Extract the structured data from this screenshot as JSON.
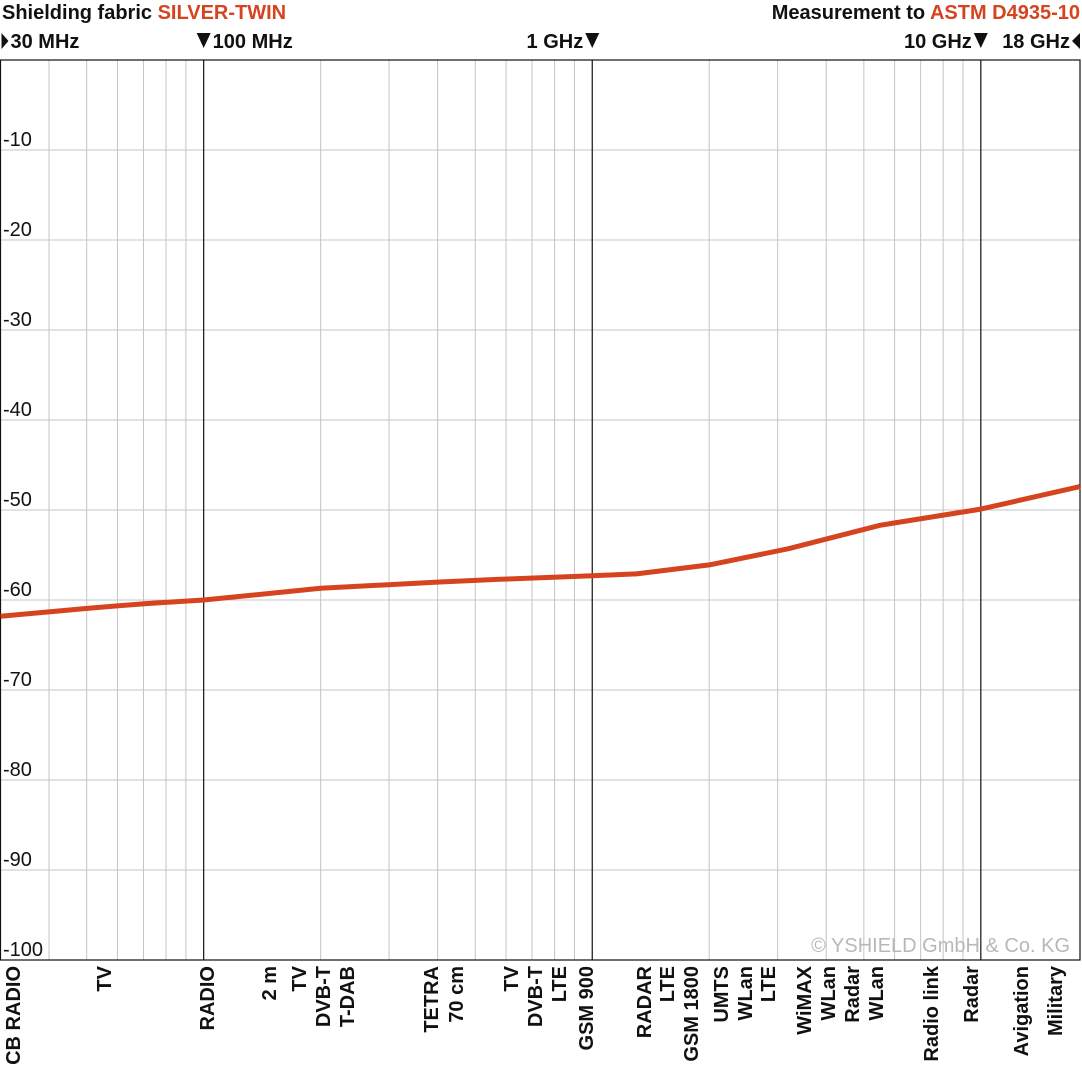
{
  "chart_data": {
    "type": "line",
    "title_prefix": "Shielding fabric",
    "title_product": "SILVER-TWIN",
    "standard_prefix": "Measurement to",
    "standard_name": "ASTM D4935-10",
    "copyright": "© YSHIELD GmbH & Co. KG",
    "x_scale": "log",
    "x": [
      30,
      51,
      71,
      100,
      200,
      405,
      578,
      1000,
      1300,
      2000,
      3200,
      5500,
      10000,
      18000
    ],
    "series": [
      {
        "name": "SILVER-TWIN",
        "color": "#d6431f",
        "values": [
          -61.8,
          -60.9,
          -60.4,
          -60,
          -58.7,
          -58,
          -57.7,
          -57.3,
          -57.1,
          -56.1,
          -54.3,
          -51.7,
          -49.9,
          -47.4
        ]
      }
    ],
    "xlim": [
      30,
      18000
    ],
    "xticks": [
      {
        "value": 30,
        "label": "30 MHz"
      },
      {
        "value": 100,
        "label": "100 MHz"
      },
      {
        "value": 1000,
        "label": "1 GHz"
      },
      {
        "value": 10000,
        "label": "10 GHz"
      },
      {
        "value": 18000,
        "label": "18 GHz"
      }
    ],
    "x_minor_grid": [
      40,
      50,
      60,
      70,
      80,
      90,
      200,
      300,
      400,
      500,
      600,
      700,
      800,
      900,
      2000,
      3000,
      4000,
      5000,
      6000,
      7000,
      8000,
      9000
    ],
    "ylim": [
      -100,
      0
    ],
    "yticks": [
      -100,
      -90,
      -80,
      -70,
      -60,
      -50,
      -40,
      -30,
      -20,
      -10
    ],
    "grid": true,
    "band_labels": [
      "CB RADIO",
      "TV",
      "RADIO",
      "2 m",
      "TV",
      "DVB-T",
      "T-DAB",
      "TETRA",
      "70 cm",
      "TV",
      "DVB-T",
      "LTE",
      "GSM 900",
      "RADAR",
      "LTE",
      "GSM 1800",
      "UMTS",
      "WLan",
      "LTE",
      "WiMAX",
      "WLan",
      "Radar",
      "WLan",
      "Radio link",
      "Radar",
      "Avigation",
      "Military"
    ]
  }
}
